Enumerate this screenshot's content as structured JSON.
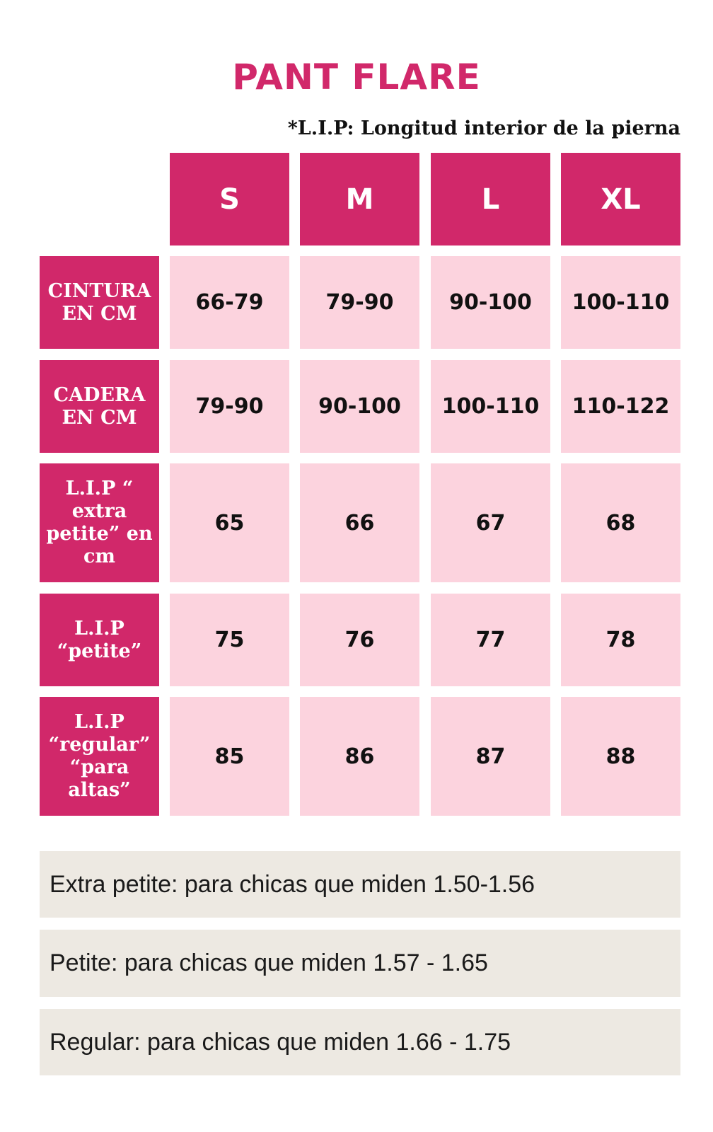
{
  "title": "PANT FLARE",
  "subtitle": "*L.I.P: Longitud interior de la pierna",
  "sizes": [
    "S",
    "M",
    "L",
    "XL"
  ],
  "rows": [
    {
      "label": "CINTURA EN CM",
      "values": [
        "66-79",
        "79-90",
        "90-100",
        "100-110"
      ]
    },
    {
      "label": "CADERA EN CM",
      "values": [
        "79-90",
        "90-100",
        "100-110",
        "110-122"
      ]
    },
    {
      "label": "L.I.P “ extra petite” en cm",
      "values": [
        "65",
        "66",
        "67",
        "68"
      ]
    },
    {
      "label": "L.I.P “petite”",
      "values": [
        "75",
        "76",
        "77",
        "78"
      ]
    },
    {
      "label": "L.I.P “regular” “para altas”",
      "values": [
        "85",
        "86",
        "87",
        "88"
      ]
    }
  ],
  "notes": [
    "Extra petite: para chicas que miden 1.50-1.56",
    "Petite: para chicas que miden 1.57 - 1.65",
    "Regular: para chicas que miden 1.66 - 1.75"
  ],
  "colors": {
    "accent": "#d1286a",
    "cell": "#fcd3de",
    "note_bg": "#ede9e2"
  }
}
